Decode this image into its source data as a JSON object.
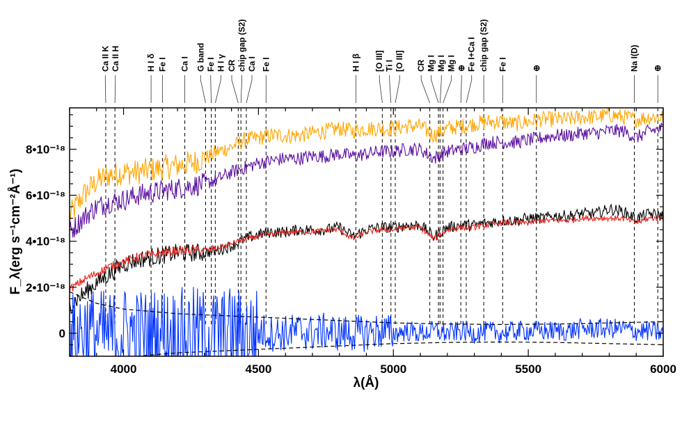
{
  "chart_data": {
    "type": "line",
    "title": "",
    "xlabel": "λ(Å)",
    "ylabel": "F_λ(erg s⁻¹cm⁻²Å⁻¹)",
    "xlim": [
      3800,
      6000
    ],
    "ylim": [
      -1e-18,
      9.8e-18
    ],
    "x_ticks": [
      {
        "value": 4000,
        "label": "4000"
      },
      {
        "value": 4500,
        "label": "4500"
      },
      {
        "value": 5000,
        "label": "5000"
      },
      {
        "value": 5500,
        "label": "5500"
      },
      {
        "value": 6000,
        "label": "6000"
      }
    ],
    "y_ticks": [
      {
        "value": 0,
        "label": "0"
      },
      {
        "value": 2e-18,
        "label": "2•10⁻¹⁸"
      },
      {
        "value": 4e-18,
        "label": "4•10⁻¹⁸"
      },
      {
        "value": 6e-18,
        "label": "6•10⁻¹⁸"
      },
      {
        "value": 8e-18,
        "label": "8•10⁻¹⁸"
      }
    ],
    "grid": false,
    "line_ids": [
      {
        "label": "Ca II K",
        "wavelength": 3934
      },
      {
        "label": "Ca II H",
        "wavelength": 3968
      },
      {
        "label": "H I δ",
        "wavelength": 4102
      },
      {
        "label": "Fe I",
        "wavelength": 4144
      },
      {
        "label": "Ca I",
        "wavelength": 4227
      },
      {
        "label": "G band",
        "wavelength": 4304
      },
      {
        "label": "Fe I",
        "wavelength": 4325
      },
      {
        "label": "H I γ",
        "wavelength": 4340
      },
      {
        "label": "CR",
        "wavelength": 4425
      },
      {
        "label": "chip gap (S2)",
        "wavelength": 4435
      },
      {
        "label": "Ca I",
        "wavelength": 4455
      },
      {
        "label": "Fe I",
        "wavelength": 4528
      },
      {
        "label": "H I β",
        "wavelength": 4861
      },
      {
        "label": "[O III]",
        "wavelength": 4959
      },
      {
        "label": "Ti I",
        "wavelength": 4991
      },
      {
        "label": "[O III]",
        "wavelength": 5007
      },
      {
        "label": "CR",
        "wavelength": 5135
      },
      {
        "label": "Mg I",
        "wavelength": 5167
      },
      {
        "label": "Mg I",
        "wavelength": 5173
      },
      {
        "label": "Mg I",
        "wavelength": 5184
      },
      {
        "label": "⊕",
        "wavelength": 5250
      },
      {
        "label": "Fe I+Ca I",
        "wavelength": 5270
      },
      {
        "label": "chip gap (S2)",
        "wavelength": 5335
      },
      {
        "label": "Fe I",
        "wavelength": 5405
      },
      {
        "label": "⊕",
        "wavelength": 5530
      },
      {
        "label": "Na I(D)",
        "wavelength": 5893
      },
      {
        "label": "⊕",
        "wavelength": 5980
      }
    ],
    "series": [
      {
        "color": "#ffa500",
        "x": [
          3800,
          3850,
          3900,
          3950,
          4000,
          4050,
          4100,
          4150,
          4200,
          4250,
          4300,
          4350,
          4400,
          4450,
          4500,
          4550,
          4600,
          4650,
          4700,
          4750,
          4800,
          4850,
          4900,
          4950,
          5000,
          5050,
          5100,
          5150,
          5200,
          5250,
          5300,
          5350,
          5400,
          5450,
          5500,
          5550,
          5600,
          5650,
          5700,
          5750,
          5800,
          5850,
          5900,
          5950,
          6000
        ],
        "y": [
          5.1e-18,
          6e-18,
          6.6e-18,
          6.9e-18,
          7e-18,
          7e-18,
          7.1e-18,
          7.2e-18,
          7.3e-18,
          7.4e-18,
          7.6e-18,
          7.9e-18,
          8.1e-18,
          8.4e-18,
          8.5e-18,
          8.6e-18,
          8.6e-18,
          8.6e-18,
          8.7e-18,
          8.8e-18,
          8.9e-18,
          8.8e-18,
          8.9e-18,
          8.9e-18,
          8.9e-18,
          9e-18,
          9e-18,
          8.6e-18,
          8.9e-18,
          9e-18,
          9.1e-18,
          9.2e-18,
          9.2e-18,
          9.1e-18,
          9.2e-18,
          9.3e-18,
          9.3e-18,
          9.3e-18,
          9.4e-18,
          9.4e-18,
          9.5e-18,
          9.4e-18,
          9.3e-18,
          9.4e-18,
          9.4e-18
        ]
      },
      {
        "color": "#5b0fa0",
        "x": [
          3800,
          3850,
          3900,
          3950,
          4000,
          4050,
          4100,
          4150,
          4200,
          4250,
          4300,
          4350,
          4400,
          4450,
          4500,
          4550,
          4600,
          4650,
          4700,
          4750,
          4800,
          4850,
          4900,
          4950,
          5000,
          5050,
          5100,
          5150,
          5200,
          5250,
          5300,
          5350,
          5400,
          5450,
          5500,
          5550,
          5600,
          5650,
          5700,
          5750,
          5800,
          5850,
          5900,
          5950,
          6000
        ],
        "y": [
          4.4e-18,
          5e-18,
          5.5e-18,
          5.7e-18,
          5.8e-18,
          6e-18,
          6.1e-18,
          6.2e-18,
          6.3e-18,
          6.4e-18,
          6.5e-18,
          6.7e-18,
          7e-18,
          7.2e-18,
          7.4e-18,
          7.5e-18,
          7.6e-18,
          7.6e-18,
          7.7e-18,
          7.7e-18,
          7.8e-18,
          7.7e-18,
          7.8e-18,
          7.9e-18,
          7.9e-18,
          8e-18,
          8e-18,
          7.6e-18,
          7.9e-18,
          8e-18,
          8.1e-18,
          8.3e-18,
          8.3e-18,
          8.3e-18,
          8.4e-18,
          8.5e-18,
          8.6e-18,
          8.6e-18,
          8.7e-18,
          8.7e-18,
          8.8e-18,
          8.8e-18,
          8.5e-18,
          8.8e-18,
          8.9e-18
        ]
      },
      {
        "color": "#000000",
        "x": [
          3800,
          3850,
          3900,
          3950,
          4000,
          4050,
          4100,
          4150,
          4200,
          4250,
          4300,
          4350,
          4400,
          4450,
          4500,
          4550,
          4600,
          4650,
          4700,
          4750,
          4800,
          4850,
          4900,
          4950,
          5000,
          5050,
          5100,
          5150,
          5200,
          5250,
          5300,
          5350,
          5400,
          5450,
          5500,
          5550,
          5600,
          5650,
          5700,
          5750,
          5800,
          5850,
          5900,
          5950,
          6000
        ],
        "y": [
          1.2e-18,
          1.7e-18,
          2.2e-18,
          2.6e-18,
          3e-18,
          3.2e-18,
          3.3e-18,
          3.4e-18,
          3.5e-18,
          3.5e-18,
          3.5e-18,
          3.6e-18,
          3.8e-18,
          4.1e-18,
          4.3e-18,
          4.4e-18,
          4.4e-18,
          4.5e-18,
          4.5e-18,
          4.5e-18,
          4.6e-18,
          4.2e-18,
          4.5e-18,
          4.6e-18,
          4.6e-18,
          4.7e-18,
          4.7e-18,
          4.2e-18,
          4.6e-18,
          4.7e-18,
          4.7e-18,
          4.8e-18,
          4.9e-18,
          4.9e-18,
          5e-18,
          5e-18,
          5.1e-18,
          5.1e-18,
          5.2e-18,
          5.2e-18,
          5.4e-18,
          5.3e-18,
          5e-18,
          5.2e-18,
          5.1e-18
        ]
      },
      {
        "color": "#e8211b",
        "x": [
          3800,
          3850,
          3900,
          3950,
          4000,
          4050,
          4100,
          4150,
          4200,
          4250,
          4300,
          4350,
          4400,
          4450,
          4500,
          4550,
          4600,
          4650,
          4700,
          4750,
          4800,
          4850,
          4900,
          4950,
          5000,
          5050,
          5100,
          5150,
          5200,
          5250,
          5300,
          5350,
          5400,
          5450,
          5500,
          5550,
          5600,
          5650,
          5700,
          5750,
          5800,
          5850,
          5900,
          5950,
          6000
        ],
        "y": [
          1.9e-18,
          2.3e-18,
          2.6e-18,
          2.9e-18,
          3.1e-18,
          3.3e-18,
          3.4e-18,
          3.5e-18,
          3.6e-18,
          3.6e-18,
          3.6e-18,
          3.7e-18,
          3.9e-18,
          4.1e-18,
          4.2e-18,
          4.3e-18,
          4.4e-18,
          4.4e-18,
          4.4e-18,
          4.5e-18,
          4.5e-18,
          4.1e-18,
          4.4e-18,
          4.5e-18,
          4.5e-18,
          4.6e-18,
          4.6e-18,
          4.1e-18,
          4.5e-18,
          4.6e-18,
          4.6e-18,
          4.7e-18,
          4.8e-18,
          4.8e-18,
          4.8e-18,
          4.9e-18,
          4.9e-18,
          4.9e-18,
          5e-18,
          5e-18,
          5e-18,
          5e-18,
          4.8e-18,
          5e-18,
          5e-18
        ]
      },
      {
        "color": "#0033ff",
        "x": [
          3800,
          3850,
          3900,
          3950,
          4000,
          4050,
          4100,
          4150,
          4200,
          4250,
          4300,
          4350,
          4400,
          4450,
          4500,
          4550,
          4600,
          4650,
          4700,
          4750,
          4800,
          4850,
          4900,
          4950,
          5000,
          5050,
          5100,
          5150,
          5200,
          5250,
          5300,
          5350,
          5400,
          5450,
          5500,
          5550,
          5600,
          5650,
          5700,
          5750,
          5800,
          5850,
          5900,
          5950,
          6000
        ],
        "y": [
          -3e-19,
          2e-19,
          0.0,
          -1e-19,
          1e-19,
          0.0,
          0.0,
          1e-19,
          0.0,
          1e-19,
          0.0,
          0.0,
          1e-19,
          0.0,
          1e-19,
          0.0,
          0.0,
          1e-19,
          0.0,
          1e-19,
          0.0,
          0.0,
          0.0,
          1e-19,
          0.0,
          1e-19,
          0.0,
          1e-19,
          0.0,
          1e-19,
          0.0,
          1e-19,
          0.0,
          1e-19,
          1e-19,
          1e-19,
          1e-19,
          1e-19,
          2e-19,
          2e-19,
          2e-19,
          2e-19,
          1e-19,
          1e-19,
          0.0
        ]
      },
      {
        "color": "#000000",
        "dashed": true,
        "x": [
          3800,
          3900,
          4000,
          4100,
          4200,
          4300,
          4400,
          4500,
          4600,
          4800,
          5000,
          5200,
          5400,
          5600,
          5800,
          6000
        ],
        "y": [
          1.8e-18,
          1.3e-18,
          1.05e-18,
          9.5e-19,
          8.5e-19,
          8e-19,
          7.5e-19,
          7e-19,
          6.5e-19,
          5.5e-19,
          4.5e-19,
          4e-19,
          3.8e-19,
          4e-19,
          4.5e-19,
          5e-19
        ]
      },
      {
        "color": "#000000",
        "dashed": true,
        "x": [
          3800,
          3900,
          4000,
          4100,
          4200,
          4300,
          4400,
          4500,
          4600,
          4800,
          5000,
          5200,
          5400,
          5600,
          5800,
          6000
        ],
        "y": [
          -1.8e-18,
          -1.3e-18,
          -1.05e-18,
          -9.5e-19,
          -8.5e-19,
          -8e-19,
          -7.5e-19,
          -7e-19,
          -6.5e-19,
          -5.5e-19,
          -4.5e-19,
          -4e-19,
          -3.8e-19,
          -4e-19,
          -4.5e-19,
          -5e-19
        ]
      }
    ]
  }
}
